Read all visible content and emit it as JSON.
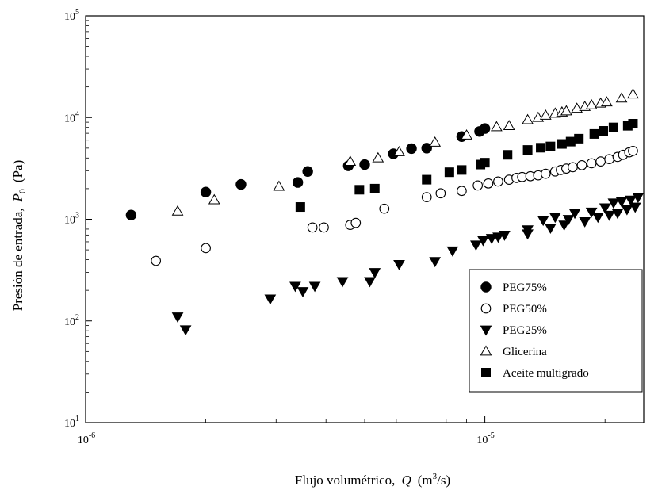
{
  "chart_data": {
    "type": "scatter",
    "x_scale": "log",
    "y_scale": "log",
    "xlim": [
      1e-06,
      2.5e-05
    ],
    "ylim": [
      10,
      100000
    ],
    "grid": false,
    "legend_position": "lower-right",
    "xlabel": {
      "text": "Flujo volumétrico,",
      "symbol": "Q",
      "unit_prefix": "(m",
      "unit_sup": "3",
      "unit_suffix": "/s)"
    },
    "ylabel": {
      "text": "Presión de entrada,",
      "symbol": "P",
      "sub": "0",
      "unit": "(Pa)"
    },
    "x_ticks": [
      {
        "value": 1e-06,
        "base": "10",
        "exp": "-6"
      },
      {
        "value": 1e-05,
        "base": "10",
        "exp": "-5"
      }
    ],
    "y_ticks": [
      {
        "value": 10,
        "base": "10",
        "exp": "1"
      },
      {
        "value": 100,
        "base": "10",
        "exp": "2"
      },
      {
        "value": 1000,
        "base": "10",
        "exp": "3"
      },
      {
        "value": 10000,
        "base": "10",
        "exp": "4"
      },
      {
        "value": 100000,
        "base": "10",
        "exp": "5"
      }
    ],
    "series": [
      {
        "name": "PEG75%",
        "marker": "filled-circle",
        "points": [
          [
            1.3e-06,
            1100
          ],
          [
            2e-06,
            1850
          ],
          [
            2.45e-06,
            2200
          ],
          [
            3.4e-06,
            2300
          ],
          [
            3.6e-06,
            2950
          ],
          [
            4.55e-06,
            3350
          ],
          [
            5e-06,
            3450
          ],
          [
            5.9e-06,
            4400
          ],
          [
            6.55e-06,
            4950
          ],
          [
            7.15e-06,
            5000
          ],
          [
            8.75e-06,
            6500
          ],
          [
            9.7e-06,
            7300
          ],
          [
            1e-05,
            7800
          ]
        ]
      },
      {
        "name": "PEG50%",
        "marker": "open-circle",
        "points": [
          [
            1.5e-06,
            390
          ],
          [
            2e-06,
            520
          ],
          [
            3.7e-06,
            830
          ],
          [
            3.95e-06,
            830
          ],
          [
            4.6e-06,
            880
          ],
          [
            4.75e-06,
            920
          ],
          [
            5.6e-06,
            1270
          ],
          [
            7.15e-06,
            1650
          ],
          [
            7.75e-06,
            1800
          ],
          [
            8.75e-06,
            1900
          ],
          [
            9.6e-06,
            2150
          ],
          [
            1.02e-05,
            2250
          ],
          [
            1.08e-05,
            2350
          ],
          [
            1.15e-05,
            2450
          ],
          [
            1.2e-05,
            2550
          ],
          [
            1.24e-05,
            2600
          ],
          [
            1.3e-05,
            2650
          ],
          [
            1.36e-05,
            2700
          ],
          [
            1.42e-05,
            2800
          ],
          [
            1.5e-05,
            2950
          ],
          [
            1.55e-05,
            3050
          ],
          [
            1.6e-05,
            3150
          ],
          [
            1.66e-05,
            3250
          ],
          [
            1.75e-05,
            3400
          ],
          [
            1.85e-05,
            3550
          ],
          [
            1.95e-05,
            3700
          ],
          [
            2.05e-05,
            3900
          ],
          [
            2.15e-05,
            4100
          ],
          [
            2.22e-05,
            4300
          ],
          [
            2.3e-05,
            4550
          ],
          [
            2.35e-05,
            4700
          ]
        ]
      },
      {
        "name": "PEG25%",
        "marker": "filled-triangle-down",
        "points": [
          [
            1.7e-06,
            110
          ],
          [
            1.78e-06,
            82
          ],
          [
            2.9e-06,
            165
          ],
          [
            3.35e-06,
            220
          ],
          [
            3.5e-06,
            195
          ],
          [
            3.75e-06,
            220
          ],
          [
            4.4e-06,
            245
          ],
          [
            5.15e-06,
            245
          ],
          [
            5.3e-06,
            300
          ],
          [
            6.1e-06,
            360
          ],
          [
            7.5e-06,
            385
          ],
          [
            8.3e-06,
            490
          ],
          [
            9.5e-06,
            560
          ],
          [
            9.9e-06,
            620
          ],
          [
            1.04e-05,
            650
          ],
          [
            1.08e-05,
            670
          ],
          [
            1.12e-05,
            700
          ],
          [
            1.28e-05,
            720
          ],
          [
            1.28e-05,
            790
          ],
          [
            1.4e-05,
            980
          ],
          [
            1.46e-05,
            820
          ],
          [
            1.5e-05,
            1050
          ],
          [
            1.58e-05,
            880
          ],
          [
            1.62e-05,
            1000
          ],
          [
            1.68e-05,
            1150
          ],
          [
            1.78e-05,
            950
          ],
          [
            1.85e-05,
            1180
          ],
          [
            1.92e-05,
            1050
          ],
          [
            2e-05,
            1300
          ],
          [
            2.05e-05,
            1100
          ],
          [
            2.1e-05,
            1450
          ],
          [
            2.15e-05,
            1150
          ],
          [
            2.2e-05,
            1500
          ],
          [
            2.27e-05,
            1250
          ],
          [
            2.32e-05,
            1550
          ],
          [
            2.38e-05,
            1320
          ],
          [
            2.42e-05,
            1650
          ]
        ]
      },
      {
        "name": "Glicerina",
        "marker": "open-triangle-up",
        "points": [
          [
            1.7e-06,
            1200
          ],
          [
            2.1e-06,
            1550
          ],
          [
            3.05e-06,
            2100
          ],
          [
            4.6e-06,
            3700
          ],
          [
            5.4e-06,
            4000
          ],
          [
            6.1e-06,
            4600
          ],
          [
            7.5e-06,
            5700
          ],
          [
            9e-06,
            6700
          ],
          [
            1.07e-05,
            8100
          ],
          [
            1.15e-05,
            8300
          ],
          [
            1.28e-05,
            9500
          ],
          [
            1.36e-05,
            10000
          ],
          [
            1.42e-05,
            10500
          ],
          [
            1.5e-05,
            11000
          ],
          [
            1.56e-05,
            11300
          ],
          [
            1.6e-05,
            11600
          ],
          [
            1.7e-05,
            12300
          ],
          [
            1.78e-05,
            12800
          ],
          [
            1.85e-05,
            13300
          ],
          [
            1.95e-05,
            13800
          ],
          [
            2.02e-05,
            14200
          ],
          [
            2.2e-05,
            15500
          ],
          [
            2.35e-05,
            17000
          ]
        ]
      },
      {
        "name": "Aceite multigrado",
        "marker": "filled-square",
        "points": [
          [
            3.45e-06,
            1320
          ],
          [
            4.85e-06,
            1950
          ],
          [
            5.3e-06,
            2000
          ],
          [
            7.15e-06,
            2450
          ],
          [
            8.15e-06,
            2900
          ],
          [
            8.75e-06,
            3050
          ],
          [
            9.75e-06,
            3450
          ],
          [
            1e-05,
            3600
          ],
          [
            1.14e-05,
            4300
          ],
          [
            1.28e-05,
            4800
          ],
          [
            1.38e-05,
            5050
          ],
          [
            1.46e-05,
            5200
          ],
          [
            1.56e-05,
            5500
          ],
          [
            1.64e-05,
            5800
          ],
          [
            1.72e-05,
            6200
          ],
          [
            1.88e-05,
            6900
          ],
          [
            1.98e-05,
            7400
          ],
          [
            2.1e-05,
            8000
          ],
          [
            2.28e-05,
            8300
          ],
          [
            2.35e-05,
            8700
          ]
        ]
      }
    ]
  }
}
